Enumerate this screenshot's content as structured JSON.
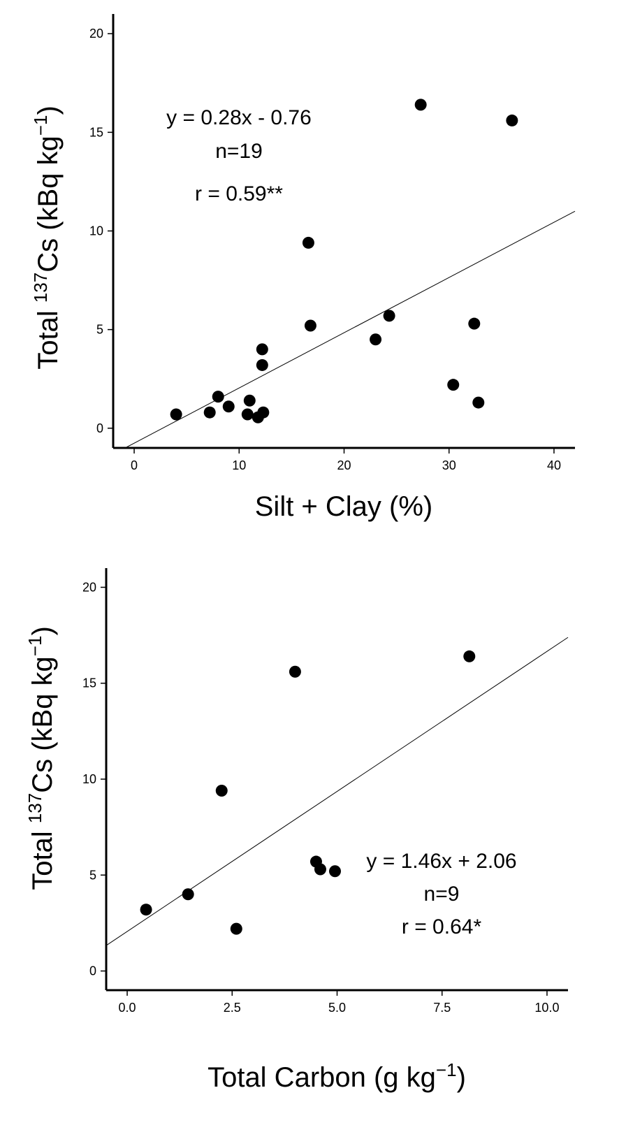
{
  "chart_data": [
    {
      "type": "scatter",
      "xlabel": "Silt + Clay (%)",
      "ylabel_parts": {
        "pre": "Total ",
        "sup": "137",
        "mid": "Cs (kBq kg",
        "sup2": "−1",
        "post": ")"
      },
      "xlim": [
        -2,
        42
      ],
      "ylim": [
        -1,
        21
      ],
      "xticks": [
        0,
        10,
        20,
        30,
        40
      ],
      "yticks": [
        0,
        5,
        10,
        15,
        20
      ],
      "xtick_labels": [
        "0",
        "10",
        "20",
        "30",
        "40"
      ],
      "ytick_labels": [
        "0",
        "5",
        "10",
        "15",
        "20"
      ],
      "grid": false,
      "points": [
        {
          "x": 4.0,
          "y": 0.7
        },
        {
          "x": 7.2,
          "y": 0.8
        },
        {
          "x": 8.0,
          "y": 1.6
        },
        {
          "x": 9.0,
          "y": 1.1
        },
        {
          "x": 10.8,
          "y": 0.7
        },
        {
          "x": 11.0,
          "y": 1.4
        },
        {
          "x": 11.8,
          "y": 0.55
        },
        {
          "x": 12.3,
          "y": 0.8
        },
        {
          "x": 12.2,
          "y": 3.2
        },
        {
          "x": 12.2,
          "y": 4.0
        },
        {
          "x": 16.6,
          "y": 9.4
        },
        {
          "x": 16.8,
          "y": 5.2
        },
        {
          "x": 23.0,
          "y": 4.5
        },
        {
          "x": 24.3,
          "y": 5.7
        },
        {
          "x": 27.3,
          "y": 16.4
        },
        {
          "x": 30.4,
          "y": 2.2
        },
        {
          "x": 32.4,
          "y": 5.3
        },
        {
          "x": 32.8,
          "y": 1.3
        },
        {
          "x": 36.0,
          "y": 15.6
        }
      ],
      "fit": {
        "slope": 0.28,
        "intercept": -0.76
      },
      "annotations": [
        "y = 0.28x - 0.76",
        "n=19",
        "r = 0.59**"
      ]
    },
    {
      "type": "scatter",
      "xlabel_parts": {
        "pre": "Total Carbon (g kg",
        "sup": "−1",
        "post": ")"
      },
      "ylabel_parts": {
        "pre": "Total ",
        "sup": "137",
        "mid": "Cs (kBq kg",
        "sup2": "−1",
        "post": ")"
      },
      "xlim": [
        -0.5,
        10.5
      ],
      "ylim": [
        -1,
        21
      ],
      "xticks": [
        0,
        2.5,
        5,
        7.5,
        10
      ],
      "yticks": [
        0,
        5,
        10,
        15,
        20
      ],
      "xtick_labels": [
        "0.0",
        "2.5",
        "5.0",
        "7.5",
        "10.0"
      ],
      "ytick_labels": [
        "0",
        "5",
        "10",
        "15",
        "20"
      ],
      "grid": false,
      "points": [
        {
          "x": 0.45,
          "y": 3.2
        },
        {
          "x": 1.45,
          "y": 4.0
        },
        {
          "x": 2.25,
          "y": 9.4
        },
        {
          "x": 2.6,
          "y": 2.2
        },
        {
          "x": 4.0,
          "y": 15.6
        },
        {
          "x": 4.5,
          "y": 5.7
        },
        {
          "x": 4.6,
          "y": 5.3
        },
        {
          "x": 4.95,
          "y": 5.2
        },
        {
          "x": 8.15,
          "y": 16.4
        }
      ],
      "fit": {
        "slope": 1.46,
        "intercept": 2.06
      },
      "annotations": [
        "y = 1.46x + 2.06",
        "n=9",
        "r = 0.64*"
      ]
    }
  ]
}
